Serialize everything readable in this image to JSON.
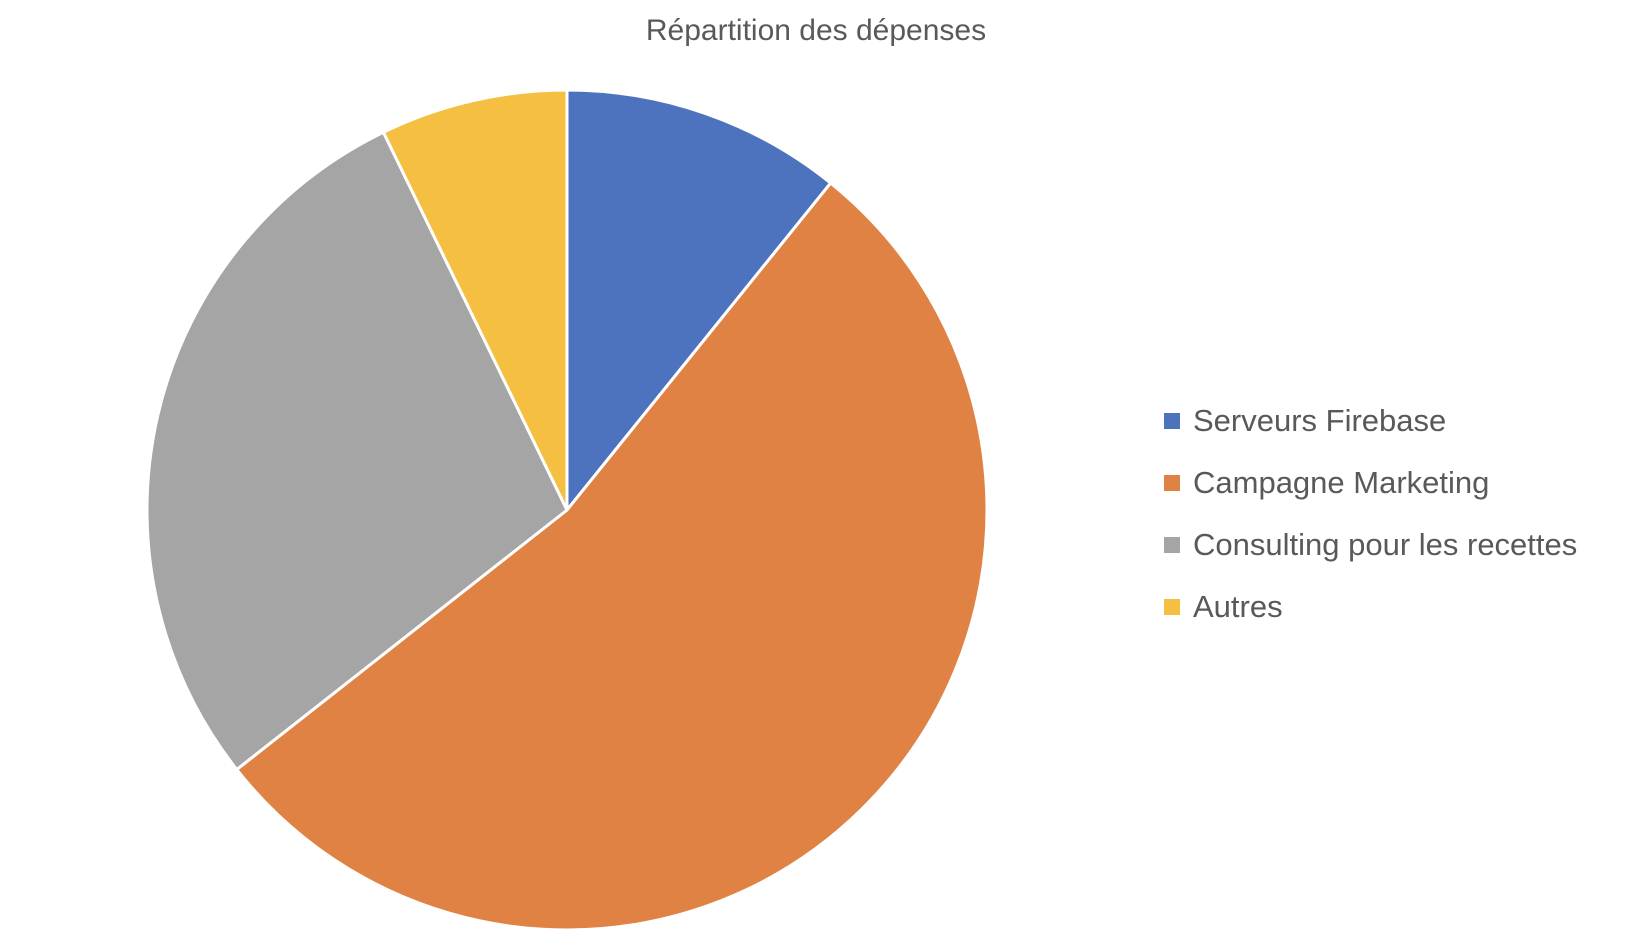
{
  "chart_data": {
    "type": "pie",
    "title": "Répartition des dépenses",
    "categories": [
      "Serveurs Firebase",
      "Campagne Marketing",
      "Consulting pour les recettes",
      "Autres"
    ],
    "values": [
      10.8,
      53.6,
      28.4,
      7.2
    ],
    "unit": "%",
    "colors": [
      "#4E73BE",
      "#DF8244",
      "#A5A5A5",
      "#F5BF42"
    ],
    "start_angle_deg": 0,
    "direction": "clockwise",
    "legend": "right"
  }
}
